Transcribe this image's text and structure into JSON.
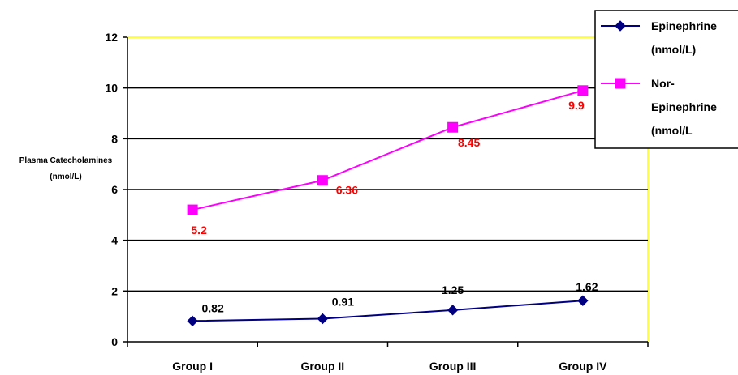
{
  "chart_data": {
    "type": "line",
    "categories": [
      "Group I",
      "Group II",
      "Group III",
      "Group IV"
    ],
    "ylabel": [
      "Plasma Catecholamines",
      "(nmol/L)"
    ],
    "ylim": [
      0,
      12
    ],
    "yticks": [
      0,
      2,
      4,
      6,
      8,
      10,
      12
    ],
    "grid": true,
    "legend_position": "top-right",
    "plot_area_border_color": "#ffff00",
    "series": [
      {
        "name": [
          "Epinephrine",
          "(nmol/L)"
        ],
        "values": [
          0.82,
          0.91,
          1.25,
          1.62
        ],
        "labels": [
          "0.82",
          "0.91",
          "1.25",
          "1.62"
        ],
        "color": "#000080",
        "label_color": "#000000",
        "marker": "diamond"
      },
      {
        "name": [
          "Nor-",
          "Epinephrine",
          "(nmol/L"
        ],
        "values": [
          5.2,
          6.36,
          8.45,
          9.9
        ],
        "labels": [
          "5.2",
          "6.36",
          "8.45",
          "9.9"
        ],
        "color": "#ff00ff",
        "label_color": "#ff0000",
        "marker": "square"
      }
    ]
  }
}
